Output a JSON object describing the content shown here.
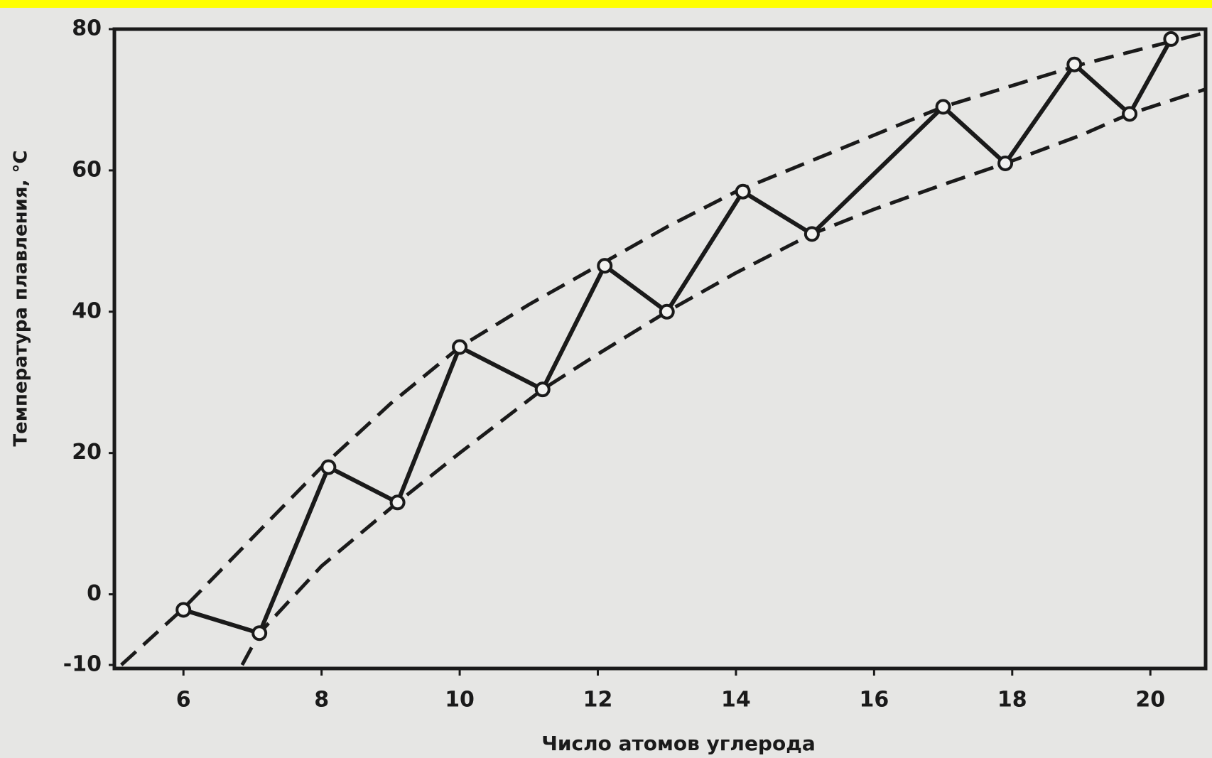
{
  "chart_data": {
    "type": "line",
    "x_label": "Число атомов углерода",
    "y_label": "Температура плавления, °С",
    "x": [
      6,
      7.1,
      8.1,
      9.1,
      10,
      11.2,
      12.1,
      13,
      14.1,
      15.1,
      17,
      17.9,
      18.9,
      19.7,
      20.3
    ],
    "series": [
      {
        "color": "#1a1a1a",
        "values": [
          -2.2,
          -5.5,
          18,
          13,
          35,
          29,
          46.5,
          40,
          57,
          51,
          69,
          61,
          75,
          68,
          78.6
        ]
      }
    ],
    "curves": [
      {
        "color": "#1a1a1a",
        "dashed": true,
        "x": [
          5.1,
          6,
          7,
          8,
          9,
          10,
          11,
          12,
          13,
          14,
          15,
          16,
          17,
          18,
          19,
          20,
          20.8
        ],
        "y": [
          -10,
          -2,
          8,
          18,
          27,
          35,
          41,
          46.5,
          52,
          57,
          61,
          65,
          69,
          72,
          75,
          77.5,
          79.5
        ]
      },
      {
        "color": "#1a1a1a",
        "dashed": true,
        "x": [
          6.85,
          7.1,
          8,
          9.1,
          10,
          11.2,
          12,
          13,
          14,
          15.1,
          16,
          17,
          17.9,
          19,
          19.7,
          20.8
        ],
        "y": [
          -10,
          -5.5,
          4,
          13,
          20,
          29,
          34,
          40,
          45.5,
          51,
          54.5,
          58,
          61,
          65,
          68,
          71.5
        ]
      }
    ],
    "xlim": [
      5,
      20.8
    ],
    "ylim": [
      -10.5,
      80
    ],
    "xticks": [
      6,
      8,
      10,
      12,
      14,
      16,
      18,
      20
    ],
    "yticks": [
      -10,
      0,
      20,
      40,
      60,
      80
    ]
  }
}
